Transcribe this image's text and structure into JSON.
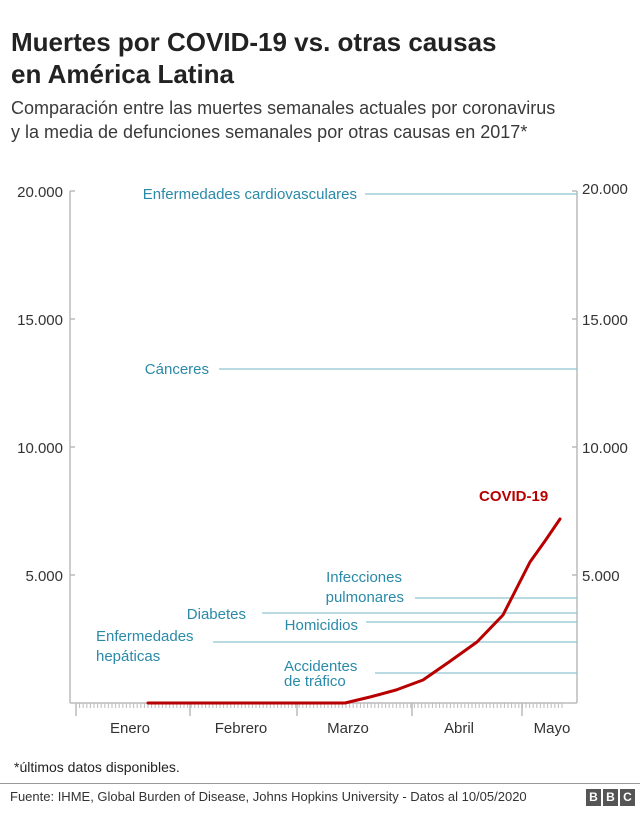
{
  "header": {
    "title_line1": "Muertes por COVID-19 vs. otras causas",
    "title_line2": "en América Latina",
    "subtitle_line1": "Comparación entre las muertes semanales actuales por coronavirus",
    "subtitle_line2": "y la media de defunciones semanales por otras causas en 2017*"
  },
  "footer": {
    "note": "*últimos datos disponibles.",
    "source": "Fuente: IHME, Global Burden of Disease, Johns Hopkins University - Datos al 10/05/2020",
    "logo": [
      "B",
      "B",
      "C"
    ]
  },
  "colors": {
    "covid": "#b80000",
    "reference": "#2a8aa8",
    "reference_line": "#8fc3d1",
    "axis": "#bbbbbb"
  },
  "axis": {
    "y_ticks": [
      "20.000",
      "15.000",
      "10.000",
      "5.000"
    ],
    "x_ticks": [
      "Enero",
      "Febrero",
      "Marzo",
      "Abril",
      "Mayo"
    ]
  },
  "series_label": "COVID-19",
  "references": {
    "cardio": "Enfermedades cardiovasculares",
    "cancer": "Cánceres",
    "pulm1": "Infecciones",
    "pulm2": "pulmonares",
    "diabetes": "Diabetes",
    "homicidios": "Homicidios",
    "hep1": "Enfermedades",
    "hep2": "hepáticas",
    "acc1": "Accidentes",
    "acc2": "de tráfico"
  },
  "chart_data": {
    "type": "line",
    "title": "Muertes por COVID-19 vs. otras causas en América Latina",
    "subtitle": "Comparación entre las muertes semanales actuales por coronavirus y la media de defunciones semanales por otras causas en 2017*",
    "xlabel": "",
    "ylabel": "",
    "ylim": [
      0,
      20000
    ],
    "y_ticks": [
      5000,
      10000,
      15000,
      20000
    ],
    "x_tick_labels": [
      "Enero",
      "Febrero",
      "Marzo",
      "Abril",
      "Mayo"
    ],
    "grid": false,
    "series": [
      {
        "name": "COVID-19",
        "x": [
          "Ene sem 2",
          "Ene sem 3",
          "Ene sem 4",
          "Feb sem 1",
          "Feb sem 2",
          "Feb sem 3",
          "Feb sem 4",
          "Mar sem 1",
          "Mar sem 2",
          "Mar sem 3",
          "Mar sem 4",
          "Abr sem 1",
          "Abr sem 2",
          "Abr sem 3",
          "Abr sem 4",
          "May sem 1",
          "May sem 2"
        ],
        "values": [
          0,
          0,
          0,
          0,
          0,
          0,
          0,
          0,
          0,
          500,
          900,
          1600,
          2400,
          3400,
          5500,
          7200,
          7200
        ]
      }
    ],
    "reference_lines": [
      {
        "name": "Enfermedades cardiovasculares",
        "value": 19900
      },
      {
        "name": "Cánceres",
        "value": 13050
      },
      {
        "name": "Infecciones pulmonares",
        "value": 4100
      },
      {
        "name": "Diabetes",
        "value": 3500
      },
      {
        "name": "Homicidios",
        "value": 3150
      },
      {
        "name": "Enfermedades hepáticas",
        "value": 2400
      },
      {
        "name": "Accidentes de tráfico",
        "value": 1170
      }
    ],
    "legend": "inline labels"
  }
}
